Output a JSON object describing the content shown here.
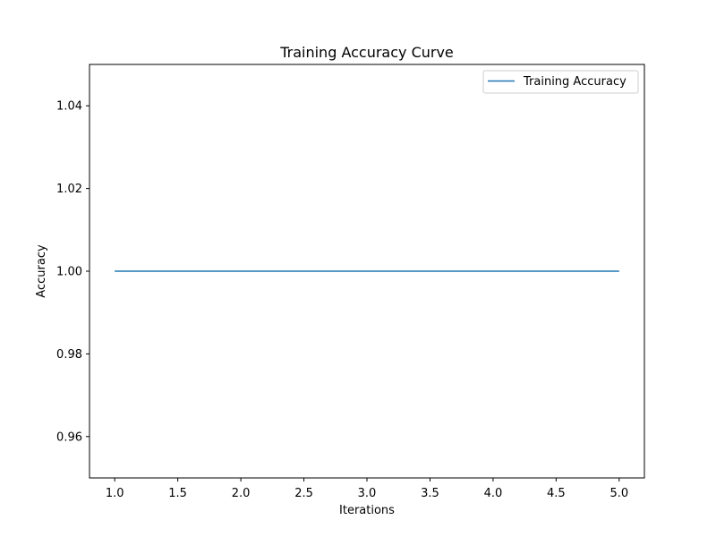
{
  "chart_data": {
    "type": "line",
    "title": "Training Accuracy Curve",
    "xlabel": "Iterations",
    "ylabel": "Accuracy",
    "xlim": [
      0.8,
      5.2
    ],
    "ylim": [
      0.95,
      1.05
    ],
    "x_ticks": [
      1.0,
      1.5,
      2.0,
      2.5,
      3.0,
      3.5,
      4.0,
      4.5,
      5.0
    ],
    "x_tick_labels": [
      "1.0",
      "1.5",
      "2.0",
      "2.5",
      "3.0",
      "3.5",
      "4.0",
      "4.5",
      "5.0"
    ],
    "y_ticks": [
      0.96,
      0.98,
      1.0,
      1.02,
      1.04
    ],
    "y_tick_labels": [
      "0.96",
      "0.98",
      "1.00",
      "1.02",
      "1.04"
    ],
    "grid": false,
    "legend_position": "top-right",
    "series": [
      {
        "name": "Training Accuracy",
        "color": "#1f77b4",
        "x": [
          1,
          2,
          3,
          4,
          5
        ],
        "y": [
          1.0,
          1.0,
          1.0,
          1.0,
          1.0
        ]
      }
    ]
  }
}
